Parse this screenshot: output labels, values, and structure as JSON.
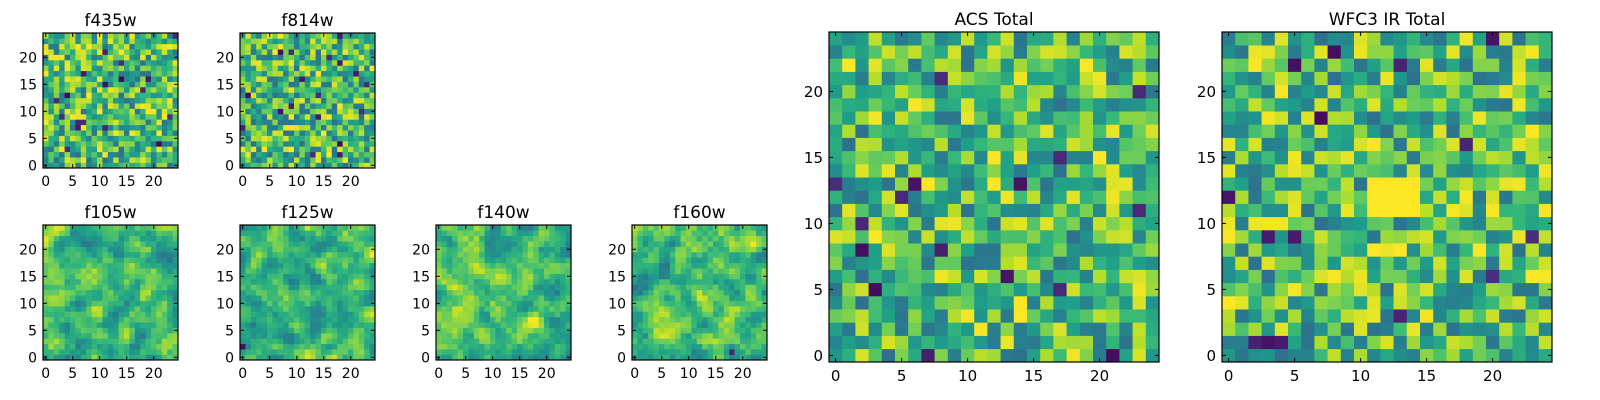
{
  "chart_data": [
    {
      "type": "heatmap",
      "title": "f435w",
      "xlabel": "",
      "ylabel": "",
      "grid_size": [
        25,
        25
      ],
      "xlim": [
        -0.5,
        24.5
      ],
      "ylim": [
        -0.5,
        24.5
      ],
      "xticks": [
        0,
        5,
        10,
        15,
        20
      ],
      "yticks": [
        0,
        5,
        10,
        15,
        20
      ],
      "colormap": "viridis",
      "background": "#c8df3f",
      "seed": 11,
      "smooth": 0
    },
    {
      "type": "heatmap",
      "title": "f814w",
      "xlabel": "",
      "ylabel": "",
      "grid_size": [
        25,
        25
      ],
      "xlim": [
        -0.5,
        24.5
      ],
      "ylim": [
        -0.5,
        24.5
      ],
      "xticks": [
        0,
        5,
        10,
        15,
        20
      ],
      "yticks": [
        0,
        5,
        10,
        15,
        20
      ],
      "colormap": "viridis",
      "background": "#9ed04c",
      "seed": 23,
      "smooth": 0
    },
    {
      "type": "heatmap",
      "title": "f105w",
      "xlabel": "",
      "ylabel": "",
      "grid_size": [
        25,
        25
      ],
      "xlim": [
        -0.5,
        24.5
      ],
      "ylim": [
        -0.5,
        24.5
      ],
      "xticks": [
        0,
        5,
        10,
        15,
        20
      ],
      "yticks": [
        0,
        5,
        10,
        15,
        20
      ],
      "colormap": "viridis",
      "background": "#7ac95a",
      "seed": 37,
      "smooth": 1
    },
    {
      "type": "heatmap",
      "title": "f125w",
      "xlabel": "",
      "ylabel": "",
      "grid_size": [
        25,
        25
      ],
      "xlim": [
        -0.5,
        24.5
      ],
      "ylim": [
        -0.5,
        24.5
      ],
      "xticks": [
        0,
        5,
        10,
        15,
        20
      ],
      "yticks": [
        0,
        5,
        10,
        15,
        20
      ],
      "colormap": "viridis",
      "background": "#a8d648",
      "seed": 41,
      "smooth": 1
    },
    {
      "type": "heatmap",
      "title": "f140w",
      "xlabel": "",
      "ylabel": "",
      "grid_size": [
        25,
        25
      ],
      "xlim": [
        -0.5,
        24.5
      ],
      "ylim": [
        -0.5,
        24.5
      ],
      "xticks": [
        0,
        5,
        10,
        15,
        20
      ],
      "yticks": [
        0,
        5,
        10,
        15,
        20
      ],
      "colormap": "viridis",
      "background": "#b3db45",
      "seed": 53,
      "smooth": 1
    },
    {
      "type": "heatmap",
      "title": "f160w",
      "xlabel": "",
      "ylabel": "",
      "grid_size": [
        25,
        25
      ],
      "xlim": [
        -0.5,
        24.5
      ],
      "ylim": [
        -0.5,
        24.5
      ],
      "xticks": [
        0,
        5,
        10,
        15,
        20
      ],
      "yticks": [
        0,
        5,
        10,
        15,
        20
      ],
      "colormap": "viridis",
      "background": "#a0d24b",
      "seed": 67,
      "smooth": 1
    },
    {
      "type": "heatmap",
      "title": "ACS Total",
      "xlabel": "",
      "ylabel": "",
      "grid_size": [
        25,
        25
      ],
      "xlim": [
        -0.5,
        24.5
      ],
      "ylim": [
        -0.5,
        24.5
      ],
      "xticks": [
        0,
        5,
        10,
        15,
        20
      ],
      "yticks": [
        0,
        5,
        10,
        15,
        20
      ],
      "colormap": "viridis",
      "background": "#8ccc52",
      "seed": 79,
      "smooth": 0
    },
    {
      "type": "heatmap",
      "title": "WFC3 IR Total",
      "xlabel": "",
      "ylabel": "",
      "grid_size": [
        25,
        25
      ],
      "xlim": [
        -0.5,
        24.5
      ],
      "ylim": [
        -0.5,
        24.5
      ],
      "xticks": [
        0,
        5,
        10,
        15,
        20
      ],
      "yticks": [
        0,
        5,
        10,
        15,
        20
      ],
      "colormap": "viridis",
      "background": "#6ec55e",
      "seed": 97,
      "smooth": 0,
      "hotspot": {
        "x": 12.5,
        "y": 12,
        "radius": 1.5
      }
    }
  ]
}
